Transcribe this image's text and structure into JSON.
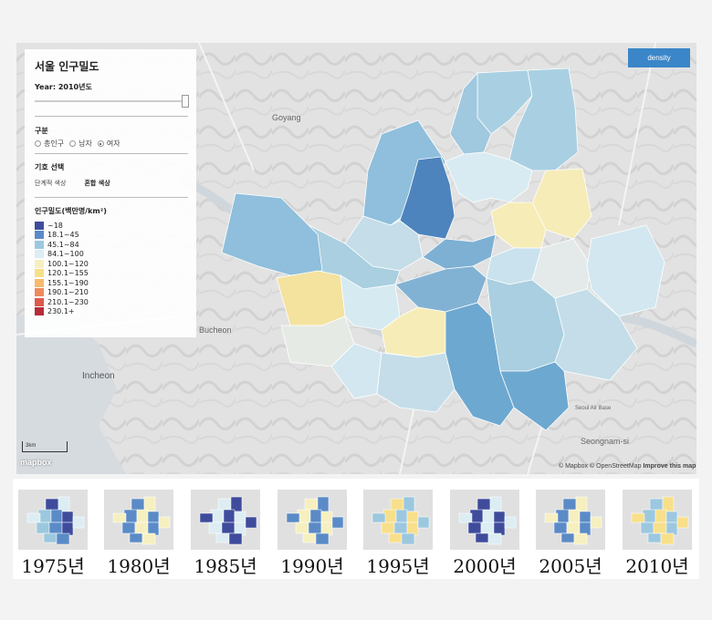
{
  "panel": {
    "title": "서울 인구밀도",
    "year_label": "Year: 2010년도",
    "division_heading": "구분",
    "radios": [
      {
        "label": "총인구",
        "checked": false
      },
      {
        "label": "남자",
        "checked": false
      },
      {
        "label": "여자",
        "checked": true
      }
    ],
    "symbol_heading": "기호 선택",
    "symbol_options": [
      "단계적 색상",
      "혼합 색상"
    ],
    "legend_title": "인구밀도(백만명/km²)",
    "legend": [
      {
        "label": "~18",
        "color": "#3f4c9c"
      },
      {
        "label": "18.1~45",
        "color": "#5b8bc7"
      },
      {
        "label": "45.1~84",
        "color": "#9cc8df"
      },
      {
        "label": "84.1~100",
        "color": "#dcedf3"
      },
      {
        "label": "100.1~120",
        "color": "#f6f0c0"
      },
      {
        "label": "120.1~155",
        "color": "#f8df8a"
      },
      {
        "label": "155.1~190",
        "color": "#f6b970"
      },
      {
        "label": "190.1~210",
        "color": "#ee8a5d"
      },
      {
        "label": "210.1~230",
        "color": "#dc5a4e"
      },
      {
        "label": "230.1+",
        "color": "#b42d3a"
      }
    ]
  },
  "density_button": "density",
  "map_labels": {
    "goyang": "Goyang",
    "bucheon": "Bucheon",
    "incheon": "Incheon",
    "seongnam": "Seongnam-si",
    "air_base": "Seoul Air Base"
  },
  "scale_label": "3km",
  "mapbox_logo": "mapbox",
  "attribution": {
    "mapbox": "© Mapbox",
    "osm": "© OpenStreetMap",
    "improve": "Improve this map"
  },
  "timeline": [
    {
      "label": "1975년"
    },
    {
      "label": "1980년"
    },
    {
      "label": "1985년"
    },
    {
      "label": "1990년"
    },
    {
      "label": "1995년"
    },
    {
      "label": "2000년"
    },
    {
      "label": "2005년"
    },
    {
      "label": "2010년"
    }
  ],
  "colors": {
    "accent": "#3a86c8"
  }
}
